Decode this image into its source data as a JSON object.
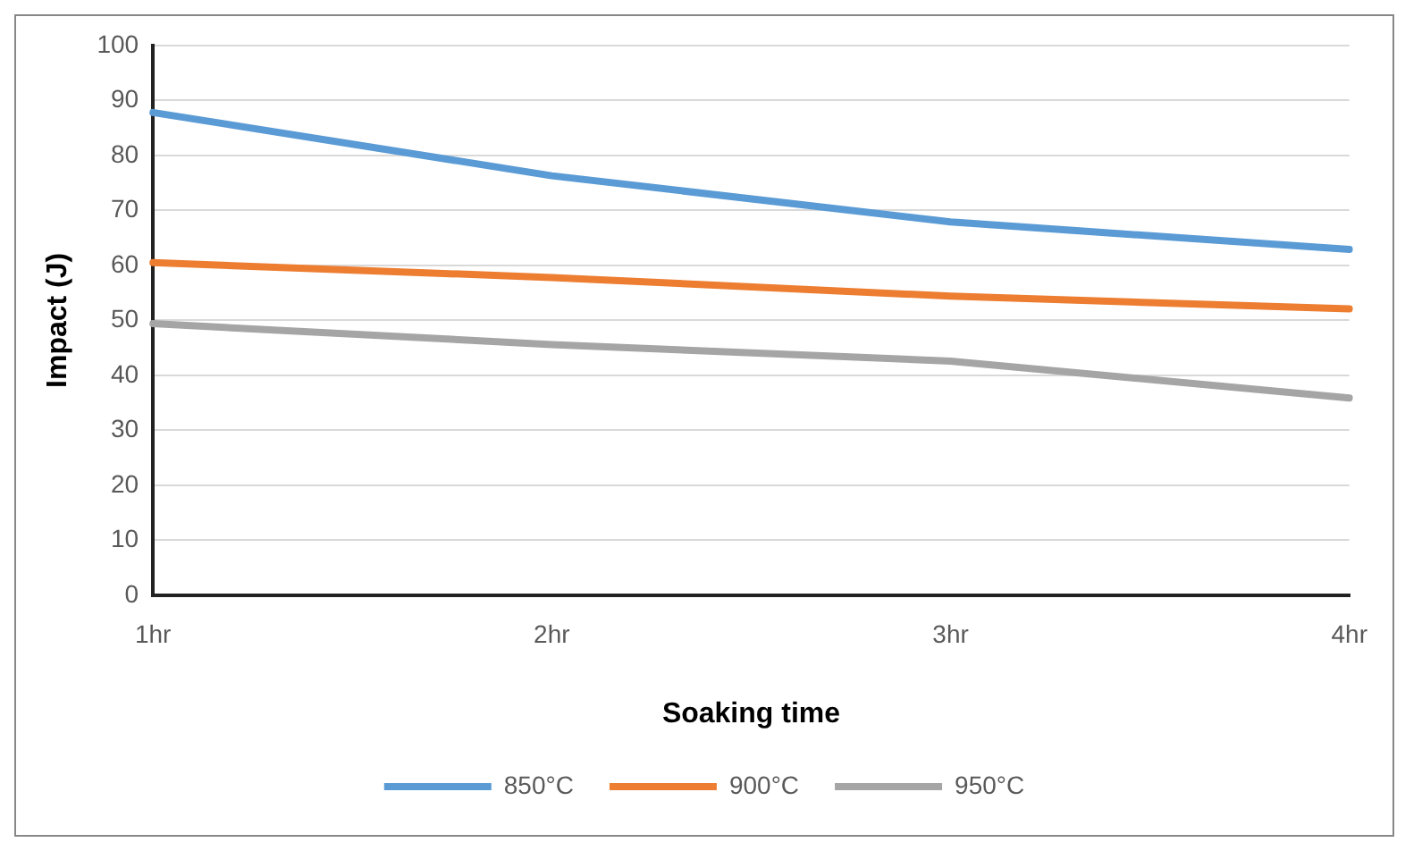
{
  "chart_data": {
    "type": "line",
    "xlabel": "Soaking time",
    "ylabel": "Impact (J)",
    "categories": [
      "1hr",
      "2hr",
      "3hr",
      "4hr"
    ],
    "series": [
      {
        "name": "850°C",
        "color": "#5b9bd5",
        "values": [
          87.8,
          76.3,
          67.9,
          62.9
        ]
      },
      {
        "name": "900°C",
        "color": "#ed7d31",
        "values": [
          60.5,
          57.8,
          54.4,
          52.1
        ]
      },
      {
        "name": "950°C",
        "color": "#a5a5a5",
        "values": [
          49.4,
          45.6,
          42.6,
          35.9
        ]
      }
    ],
    "ylim": [
      0,
      100
    ],
    "yticks": [
      0,
      10,
      20,
      30,
      40,
      50,
      60,
      70,
      80,
      90,
      100
    ],
    "grid": "y",
    "legend": "bottom",
    "marker": "none",
    "line_style": "solid"
  }
}
